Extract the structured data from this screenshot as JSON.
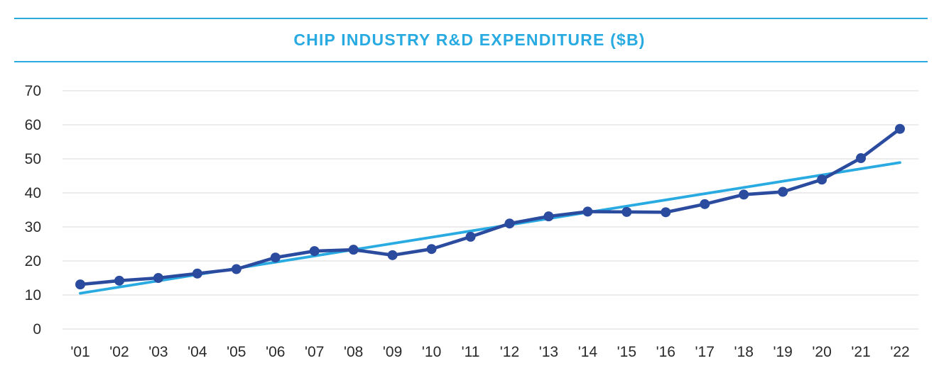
{
  "header": {
    "title": "CHIP INDUSTRY R&D EXPENDITURE ($B)"
  },
  "colors": {
    "accent_cyan": "#29abe2",
    "series_blue": "#2b4b9e",
    "gridline": "#e1e1e1",
    "axis_text": "#2a2a2a",
    "background": "#ffffff"
  },
  "chart_data": {
    "type": "line",
    "title": "CHIP INDUSTRY R&D EXPENDITURE ($B)",
    "categories": [
      "'01",
      "'02",
      "'03",
      "'04",
      "'05",
      "'06",
      "'07",
      "'08",
      "'09",
      "'10",
      "'11",
      "'12",
      "'13",
      "'14",
      "'15",
      "'16",
      "'17",
      "'18",
      "'19",
      "'20",
      "'21",
      "'22"
    ],
    "series": [
      {
        "name": "Chip industry R&D expenditure",
        "color": "#2b4b9e",
        "marker": "circle",
        "values": [
          13.1,
          14.2,
          15.0,
          16.3,
          17.6,
          21.0,
          22.9,
          23.3,
          21.7,
          23.5,
          27.1,
          31.0,
          33.1,
          34.5,
          34.4,
          34.3,
          36.7,
          39.5,
          40.3,
          43.9,
          50.2,
          58.8
        ]
      }
    ],
    "trend_line": {
      "name": "Linear trend",
      "color": "#29abe2",
      "start_value": 10.5,
      "end_value": 48.9
    },
    "xlabel": "",
    "ylabel": "",
    "ylim": [
      0,
      70
    ],
    "yticks": [
      0,
      10,
      20,
      30,
      40,
      50,
      60,
      70
    ],
    "grid": "horizontal",
    "legend": "none"
  }
}
